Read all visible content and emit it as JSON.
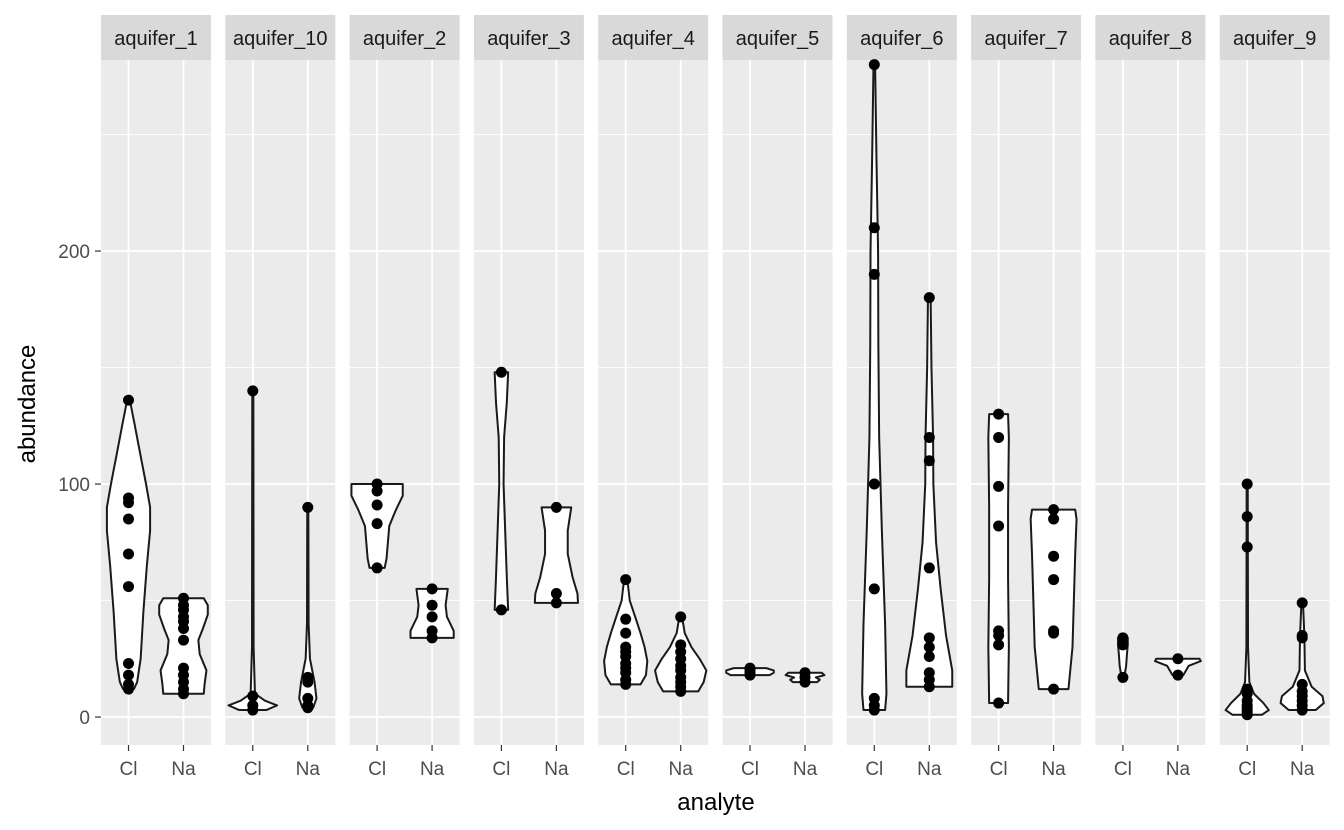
{
  "chart_data": {
    "type": "violin",
    "xlabel": "analyte",
    "ylabel": "abundance",
    "x_categories": [
      "Cl",
      "Na"
    ],
    "y_ticks": [
      0,
      100,
      200
    ],
    "ylim": [
      -12,
      282
    ],
    "grid": true,
    "colors": {
      "panel_bg": "#ebebeb",
      "strip_bg": "#d9d9d9",
      "grid": "#ffffff",
      "violin_fill": "#ffffff",
      "violin_stroke": "#1a1a1a",
      "point": "#000000"
    },
    "facets": [
      {
        "name": "aquifer_1",
        "Cl": {
          "min": 12,
          "max": 136,
          "points": [
            12,
            14,
            18,
            23,
            56,
            70,
            85,
            92,
            94,
            136
          ],
          "profile": [
            [
              12,
              0.2
            ],
            [
              15,
              0.32
            ],
            [
              25,
              0.45
            ],
            [
              45,
              0.55
            ],
            [
              65,
              0.68
            ],
            [
              80,
              0.8
            ],
            [
              90,
              0.8
            ],
            [
              100,
              0.65
            ],
            [
              115,
              0.4
            ],
            [
              126,
              0.22
            ],
            [
              136,
              0.05
            ]
          ]
        },
        "Na": {
          "min": 10,
          "max": 51,
          "points": [
            10,
            12,
            15,
            18,
            21,
            33,
            38,
            41,
            43,
            46,
            48,
            51
          ],
          "profile": [
            [
              10,
              0.75
            ],
            [
              14,
              0.78
            ],
            [
              20,
              0.85
            ],
            [
              27,
              0.6
            ],
            [
              33,
              0.55
            ],
            [
              38,
              0.72
            ],
            [
              44,
              0.9
            ],
            [
              48,
              0.9
            ],
            [
              51,
              0.75
            ]
          ]
        }
      },
      {
        "name": "aquifer_10",
        "Cl": {
          "min": 3,
          "max": 140,
          "points": [
            3,
            5,
            9,
            140
          ],
          "profile": [
            [
              3,
              0.5
            ],
            [
              5,
              0.9
            ],
            [
              7,
              0.45
            ],
            [
              10,
              0.08
            ],
            [
              30,
              0.03
            ],
            [
              140,
              0.02
            ]
          ]
        },
        "Na": {
          "min": 4,
          "max": 90,
          "points": [
            4,
            5,
            8,
            15,
            17,
            90
          ],
          "profile": [
            [
              4,
              0.2
            ],
            [
              8,
              0.32
            ],
            [
              15,
              0.25
            ],
            [
              25,
              0.08
            ],
            [
              40,
              0.03
            ],
            [
              90,
              0.02
            ]
          ]
        }
      },
      {
        "name": "aquifer_2",
        "Cl": {
          "min": 64,
          "max": 100,
          "points": [
            64,
            83,
            91,
            97,
            100
          ],
          "profile": [
            [
              64,
              0.28
            ],
            [
              68,
              0.35
            ],
            [
              75,
              0.4
            ],
            [
              82,
              0.45
            ],
            [
              89,
              0.7
            ],
            [
              95,
              0.95
            ],
            [
              100,
              0.95
            ]
          ]
        },
        "Na": {
          "min": 34,
          "max": 55,
          "points": [
            34,
            37,
            43,
            48,
            55
          ],
          "profile": [
            [
              34,
              0.8
            ],
            [
              37,
              0.8
            ],
            [
              43,
              0.55
            ],
            [
              48,
              0.5
            ],
            [
              55,
              0.58
            ]
          ]
        }
      },
      {
        "name": "aquifer_3",
        "Cl": {
          "min": 46,
          "max": 148,
          "points": [
            46,
            148
          ],
          "profile": [
            [
              46,
              0.25
            ],
            [
              60,
              0.2
            ],
            [
              80,
              0.14
            ],
            [
              100,
              0.08
            ],
            [
              120,
              0.1
            ],
            [
              135,
              0.2
            ],
            [
              148,
              0.25
            ]
          ]
        },
        "Na": {
          "min": 49,
          "max": 90,
          "points": [
            49,
            53,
            90
          ],
          "profile": [
            [
              49,
              0.8
            ],
            [
              53,
              0.78
            ],
            [
              60,
              0.6
            ],
            [
              70,
              0.42
            ],
            [
              80,
              0.42
            ],
            [
              90,
              0.55
            ]
          ]
        }
      },
      {
        "name": "aquifer_4",
        "Cl": {
          "min": 14,
          "max": 59,
          "points": [
            14,
            16,
            19,
            21,
            23,
            26,
            28,
            30,
            36,
            42,
            59
          ],
          "profile": [
            [
              14,
              0.55
            ],
            [
              18,
              0.75
            ],
            [
              24,
              0.8
            ],
            [
              30,
              0.7
            ],
            [
              36,
              0.55
            ],
            [
              42,
              0.38
            ],
            [
              50,
              0.15
            ],
            [
              59,
              0.06
            ]
          ]
        },
        "Na": {
          "min": 11,
          "max": 43,
          "points": [
            11,
            13,
            15,
            17,
            20,
            22,
            25,
            28,
            31,
            43
          ],
          "profile": [
            [
              11,
              0.65
            ],
            [
              15,
              0.85
            ],
            [
              20,
              0.95
            ],
            [
              25,
              0.7
            ],
            [
              30,
              0.4
            ],
            [
              36,
              0.15
            ],
            [
              43,
              0.05
            ]
          ]
        }
      },
      {
        "name": "aquifer_5",
        "Cl": {
          "min": 18,
          "max": 21,
          "points": [
            18,
            19,
            20,
            21
          ],
          "profile": [
            [
              18,
              0.72
            ],
            [
              19,
              0.88
            ],
            [
              20,
              0.88
            ],
            [
              21,
              0.6
            ]
          ]
        },
        "Na": {
          "min": 15,
          "max": 19,
          "points": [
            15,
            17,
            19
          ],
          "profile": [
            [
              15,
              0.45
            ],
            [
              16,
              0.55
            ],
            [
              17,
              0.4
            ],
            [
              18,
              0.72
            ],
            [
              19,
              0.62
            ]
          ]
        }
      },
      {
        "name": "aquifer_6",
        "Cl": {
          "min": 3,
          "max": 280,
          "points": [
            3,
            5,
            8,
            55,
            100,
            190,
            210,
            280
          ],
          "profile": [
            [
              3,
              0.4
            ],
            [
              10,
              0.45
            ],
            [
              40,
              0.4
            ],
            [
              80,
              0.28
            ],
            [
              120,
              0.18
            ],
            [
              160,
              0.15
            ],
            [
              200,
              0.14
            ],
            [
              240,
              0.08
            ],
            [
              280,
              0.03
            ]
          ]
        },
        "Na": {
          "min": 13,
          "max": 180,
          "points": [
            13,
            16,
            19,
            26,
            30,
            34,
            64,
            110,
            120,
            180
          ],
          "profile": [
            [
              13,
              0.85
            ],
            [
              20,
              0.85
            ],
            [
              35,
              0.62
            ],
            [
              55,
              0.42
            ],
            [
              75,
              0.25
            ],
            [
              100,
              0.15
            ],
            [
              120,
              0.14
            ],
            [
              150,
              0.08
            ],
            [
              180,
              0.05
            ]
          ]
        }
      },
      {
        "name": "aquifer_7",
        "Cl": {
          "min": 6,
          "max": 130,
          "points": [
            6,
            31,
            35,
            37,
            82,
            99,
            120,
            130
          ],
          "profile": [
            [
              6,
              0.35
            ],
            [
              30,
              0.38
            ],
            [
              60,
              0.35
            ],
            [
              90,
              0.35
            ],
            [
              120,
              0.38
            ],
            [
              130,
              0.35
            ]
          ]
        },
        "Na": {
          "min": 12,
          "max": 89,
          "points": [
            12,
            36,
            37,
            59,
            69,
            85,
            89
          ],
          "profile": [
            [
              12,
              0.55
            ],
            [
              30,
              0.7
            ],
            [
              50,
              0.75
            ],
            [
              70,
              0.8
            ],
            [
              85,
              0.85
            ],
            [
              89,
              0.8
            ]
          ]
        }
      },
      {
        "name": "aquifer_8",
        "Cl": {
          "min": 17,
          "max": 34,
          "points": [
            17,
            31,
            34
          ],
          "profile": [
            [
              17,
              0.05
            ],
            [
              22,
              0.12
            ],
            [
              27,
              0.15
            ],
            [
              31,
              0.18
            ],
            [
              34,
              0.18
            ]
          ]
        },
        "Na": {
          "min": 18,
          "max": 25,
          "points": [
            18,
            25
          ],
          "profile": [
            [
              18,
              0.2
            ],
            [
              20,
              0.3
            ],
            [
              22,
              0.4
            ],
            [
              24,
              0.85
            ],
            [
              25,
              0.8
            ]
          ]
        }
      },
      {
        "name": "aquifer_9",
        "Cl": {
          "min": 1,
          "max": 100,
          "points": [
            1,
            2,
            3,
            4,
            5,
            7,
            10,
            12,
            73,
            86,
            100
          ],
          "profile": [
            [
              1,
              0.55
            ],
            [
              3,
              0.8
            ],
            [
              6,
              0.6
            ],
            [
              10,
              0.25
            ],
            [
              15,
              0.08
            ],
            [
              30,
              0.03
            ],
            [
              100,
              0.02
            ]
          ]
        },
        "Na": {
          "min": 3,
          "max": 49,
          "points": [
            3,
            5,
            7,
            9,
            11,
            14,
            34,
            35,
            49
          ],
          "profile": [
            [
              3,
              0.5
            ],
            [
              6,
              0.8
            ],
            [
              9,
              0.75
            ],
            [
              13,
              0.35
            ],
            [
              20,
              0.1
            ],
            [
              35,
              0.08
            ],
            [
              49,
              0.03
            ]
          ]
        }
      }
    ]
  }
}
